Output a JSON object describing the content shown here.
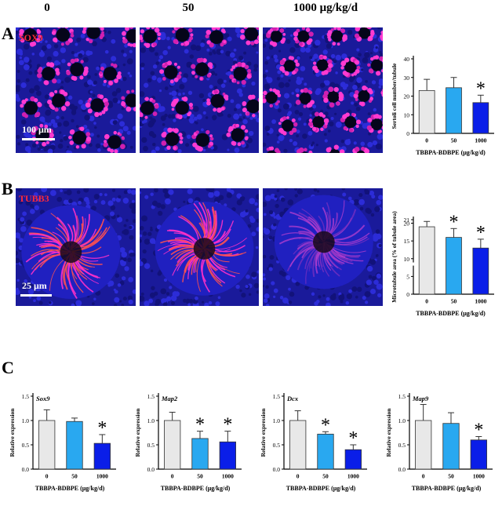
{
  "column_titles": [
    "0",
    "50",
    "1000 μg/kg/d"
  ],
  "panels": {
    "A": {
      "letter": "A",
      "stain": "SOX9",
      "scale": "100 μm"
    },
    "B": {
      "letter": "B",
      "stain": "TUBB3",
      "scale": "25 μm"
    },
    "C": {
      "letter": "C"
    }
  },
  "colors": {
    "ctrl": "#e8e8e8",
    "mid": "#29a8f0",
    "high": "#0a1ee8"
  },
  "chart_data": [
    {
      "id": "A",
      "type": "bar",
      "ylabel": "Sertoli cell number/tubule",
      "xlabel": "TBBPA-BDBPE (μg/kg/d)",
      "categories": [
        "0",
        "50",
        "1000"
      ],
      "values": [
        23,
        24.5,
        16.5
      ],
      "errors": [
        6,
        5.5,
        4
      ],
      "significant": [
        false,
        false,
        true
      ],
      "ylim": [
        0,
        40
      ],
      "yticks": [
        "0",
        "10",
        "20",
        "30",
        "40"
      ]
    },
    {
      "id": "B",
      "type": "bar",
      "ylabel": "Microtubule area (% of tubule area)",
      "xlabel": "TBBPA-BDBPE (μg/kg/d)",
      "categories": [
        "0",
        "50",
        "1000"
      ],
      "values": [
        19,
        16,
        13
      ],
      "errors": [
        1.5,
        2.5,
        2.5
      ],
      "significant": [
        false,
        true,
        true
      ],
      "ylim": [
        0,
        21
      ],
      "yticks": [
        "0",
        "5",
        "10",
        "15",
        "20",
        "21"
      ],
      "axis_break": true
    },
    {
      "id": "Sox9",
      "type": "bar",
      "gene": "Sox9",
      "ylabel": "Relative expression",
      "xlabel": "TBBPA-BDBPE (μg/kg/d)",
      "categories": [
        "0",
        "50",
        "1000"
      ],
      "values": [
        1.0,
        0.98,
        0.53
      ],
      "errors": [
        0.22,
        0.07,
        0.18
      ],
      "significant": [
        false,
        false,
        true
      ],
      "ylim": [
        0,
        1.5
      ],
      "yticks": [
        "0.0",
        "0.5",
        "1.0",
        "1.5"
      ]
    },
    {
      "id": "Map2",
      "type": "bar",
      "gene": "Map2",
      "ylabel": "Relative expression",
      "xlabel": "TBBPA-BDBPE (μg/kg/d)",
      "categories": [
        "0",
        "50",
        "1000"
      ],
      "values": [
        1.0,
        0.63,
        0.56
      ],
      "errors": [
        0.17,
        0.15,
        0.22
      ],
      "significant": [
        false,
        true,
        true
      ],
      "ylim": [
        0,
        1.5
      ],
      "yticks": [
        "0.0",
        "0.5",
        "1.0",
        "1.5"
      ]
    },
    {
      "id": "Dcx",
      "type": "bar",
      "gene": "Dcx",
      "ylabel": "Relative expression",
      "xlabel": "TBBPA-BDBPE (μg/kg/d)",
      "categories": [
        "0",
        "50",
        "1000"
      ],
      "values": [
        1.0,
        0.72,
        0.4
      ],
      "errors": [
        0.2,
        0.05,
        0.1
      ],
      "significant": [
        false,
        true,
        true
      ],
      "ylim": [
        0,
        1.5
      ],
      "yticks": [
        "0.0",
        "0.5",
        "1.0",
        "1.5"
      ]
    },
    {
      "id": "Map9",
      "type": "bar",
      "gene": "Map9",
      "ylabel": "Relative expression",
      "xlabel": "TBBPA-BDBPE (μg/kg/d)",
      "categories": [
        "0",
        "50",
        "1000"
      ],
      "values": [
        1.0,
        0.94,
        0.6
      ],
      "errors": [
        0.33,
        0.22,
        0.07
      ],
      "significant": [
        false,
        false,
        true
      ],
      "ylim": [
        0,
        1.5
      ],
      "yticks": [
        "0.0",
        "0.5",
        "1.0",
        "1.5"
      ]
    }
  ]
}
